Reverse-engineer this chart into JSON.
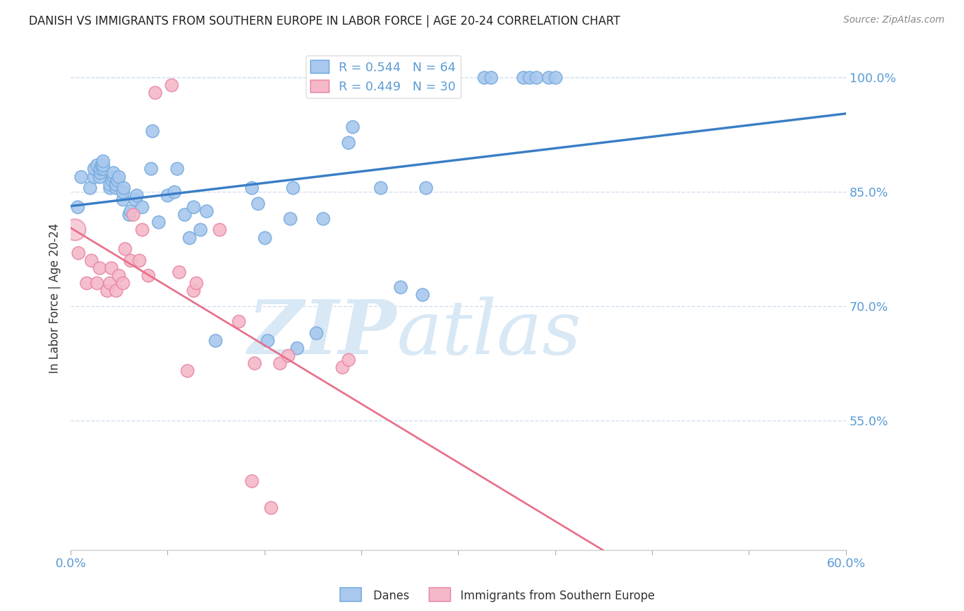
{
  "title": "DANISH VS IMMIGRANTS FROM SOUTHERN EUROPE IN LABOR FORCE | AGE 20-24 CORRELATION CHART",
  "source": "Source: ZipAtlas.com",
  "ylabel": "In Labor Force | Age 20-24",
  "xlim": [
    0.0,
    0.6
  ],
  "ylim": [
    0.38,
    1.04
  ],
  "yticks": [
    0.55,
    0.7,
    0.85,
    1.0
  ],
  "xticks": [
    0.0,
    0.075,
    0.15,
    0.225,
    0.3,
    0.375,
    0.45,
    0.525,
    0.6
  ],
  "xtick_labels_show": [
    "0.0%",
    "",
    "",
    "",
    "",
    "",
    "",
    "",
    "60.0%"
  ],
  "danes_R": 0.544,
  "danes_N": 64,
  "imm_R": 0.449,
  "imm_N": 30,
  "danes_color": "#A8C8EE",
  "danes_edge": "#7AADDF",
  "imm_color": "#F5B8C8",
  "imm_edge": "#E88BA8",
  "trend_blue": "#3A7EC6",
  "trend_pink": "#E8708A",
  "danes_x": [
    0.005,
    0.008,
    0.015,
    0.018,
    0.018,
    0.02,
    0.022,
    0.023,
    0.023,
    0.024,
    0.025,
    0.025,
    0.025,
    0.03,
    0.03,
    0.032,
    0.033,
    0.033,
    0.035,
    0.035,
    0.036,
    0.037,
    0.04,
    0.04,
    0.041,
    0.045,
    0.046,
    0.05,
    0.051,
    0.055,
    0.062,
    0.063,
    0.068,
    0.075,
    0.08,
    0.082,
    0.088,
    0.092,
    0.095,
    0.1,
    0.105,
    0.112,
    0.14,
    0.145,
    0.15,
    0.152,
    0.17,
    0.172,
    0.175,
    0.19,
    0.195,
    0.215,
    0.218,
    0.24,
    0.255,
    0.272,
    0.275,
    0.32,
    0.325,
    0.35,
    0.355,
    0.36,
    0.37,
    0.375
  ],
  "danes_y": [
    0.83,
    0.87,
    0.855,
    0.87,
    0.88,
    0.885,
    0.87,
    0.875,
    0.88,
    0.885,
    0.88,
    0.885,
    0.89,
    0.855,
    0.86,
    0.865,
    0.87,
    0.875,
    0.855,
    0.86,
    0.865,
    0.87,
    0.84,
    0.85,
    0.855,
    0.82,
    0.825,
    0.84,
    0.845,
    0.83,
    0.88,
    0.93,
    0.81,
    0.845,
    0.85,
    0.88,
    0.82,
    0.79,
    0.83,
    0.8,
    0.825,
    0.655,
    0.855,
    0.835,
    0.79,
    0.655,
    0.815,
    0.855,
    0.645,
    0.665,
    0.815,
    0.915,
    0.935,
    0.855,
    0.725,
    0.715,
    0.855,
    1.0,
    1.0,
    1.0,
    1.0,
    1.0,
    1.0,
    1.0
  ],
  "imm_x": [
    0.006,
    0.012,
    0.016,
    0.02,
    0.022,
    0.028,
    0.03,
    0.031,
    0.035,
    0.037,
    0.04,
    0.042,
    0.046,
    0.048,
    0.053,
    0.055,
    0.06,
    0.065,
    0.078,
    0.084,
    0.09,
    0.095,
    0.097,
    0.115,
    0.13,
    0.142,
    0.162,
    0.168,
    0.21,
    0.215
  ],
  "imm_y": [
    0.77,
    0.73,
    0.76,
    0.73,
    0.75,
    0.72,
    0.73,
    0.75,
    0.72,
    0.74,
    0.73,
    0.775,
    0.76,
    0.82,
    0.76,
    0.8,
    0.74,
    0.98,
    0.99,
    0.745,
    0.615,
    0.72,
    0.73,
    0.8,
    0.68,
    0.625,
    0.625,
    0.635,
    0.62,
    0.63
  ],
  "imm_outlier_x": [
    0.14
  ],
  "imm_outlier_y": [
    0.47
  ],
  "imm_low_x": [
    0.155
  ],
  "imm_low_y": [
    0.435
  ],
  "background_color": "#FFFFFF",
  "grid_color": "#D0DFF0",
  "title_color": "#222222",
  "axis_label_color": "#333333",
  "tick_color": "#5B9BD5",
  "watermark_zip": "ZIP",
  "watermark_atlas": "atlas",
  "watermark_color": "#D8E8F5"
}
